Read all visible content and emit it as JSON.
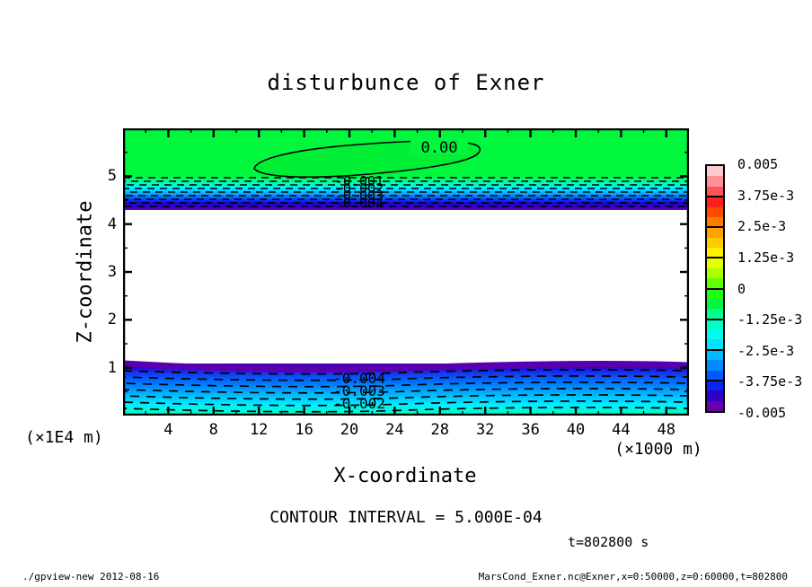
{
  "title": "disturbunce of Exner",
  "axes": {
    "x": {
      "label": "X-coordinate",
      "unit": "(×1000 m)",
      "ticks": [
        4,
        8,
        12,
        16,
        20,
        24,
        28,
        32,
        36,
        40,
        44,
        48
      ],
      "range": [
        0,
        50
      ],
      "minor_step": 2
    },
    "y": {
      "label": "Z-coordinate",
      "unit": "(×1E4 m)",
      "ticks": [
        1,
        2,
        3,
        4,
        5
      ],
      "range": [
        0,
        6
      ],
      "minor_step": 0.5
    }
  },
  "contours": {
    "zero_label": "0.00",
    "upper_band_labels": [
      "-0.001",
      "-0.002",
      "-0.003",
      "-0.004"
    ],
    "lower_band_labels": [
      "-0.004",
      "-0.003",
      "-0.002"
    ]
  },
  "colorbar": {
    "labels": [
      "0.005",
      "3.75e-3",
      "2.5e-3",
      "1.25e-3",
      "0",
      "-1.25e-3",
      "-2.5e-3",
      "-3.75e-3",
      "-0.005"
    ],
    "colors": [
      "#ffc8cc",
      "#ff9098",
      "#ff5457",
      "#ff1f1f",
      "#ff4a00",
      "#ff7b00",
      "#ffa300",
      "#ffc900",
      "#ffef00",
      "#e4ff00",
      "#aaff00",
      "#62ff00",
      "#1fff12",
      "#00f73e",
      "#00ff8c",
      "#00ffc4",
      "#00fdf2",
      "#00e4ff",
      "#00baff",
      "#008cff",
      "#005aff",
      "#0a24f2",
      "#3000c8",
      "#6a00a8"
    ]
  },
  "annotations": {
    "contour_interval": "CONTOUR INTERVAL = 5.000E-04",
    "time": "t=802800 s"
  },
  "footer": {
    "left": "./gpview-new  2012-08-16",
    "right": "MarsCond_Exner.nc@Exner,x=0:50000,z=0:60000,t=802800"
  },
  "chart_data": {
    "type": "heatmap",
    "title": "disturbunce of Exner",
    "xlabel": "X-coordinate (×1000 m)",
    "ylabel": "Z-coordinate (×1E4 m)",
    "xlim": [
      0,
      50
    ],
    "ylim": [
      0,
      6
    ],
    "variable": "MarsCond_Exner.nc@Exner",
    "time_seconds": 802800,
    "contour_interval": 0.0005,
    "color_range": [
      -0.005,
      0.005
    ],
    "colorbar_levels": [
      0.005,
      0.00375,
      0.0025,
      0.00125,
      0,
      -0.00125,
      -0.0025,
      -0.00375,
      -0.005
    ],
    "regions": [
      {
        "z_range": [
          5.1,
          6.0
        ],
        "value": "≈0",
        "description": "near-zero disturbance (green); closed 0.00 contour ellipse spanning x≈11.5–31.5 centered near z≈5.5"
      },
      {
        "z_range": [
          4.4,
          5.1
        ],
        "value": "-0.0005 to -0.005",
        "description": "sharp negative gradient band with dashed contours -0.001..-0.004; shading green→cyan→blue→purple"
      },
      {
        "z_range": [
          1.0,
          4.4
        ],
        "value": "< -0.005",
        "description": "below color range, rendered blank/white"
      },
      {
        "z_range": [
          0.0,
          1.0
        ],
        "value": "-0.005 to ≈-0.0015",
        "description": "negative band: purple (-0.005) at z≈1 rising to cyan (≈-0.0015) at surface; dashed contours -0.004, -0.003, -0.002"
      }
    ]
  }
}
